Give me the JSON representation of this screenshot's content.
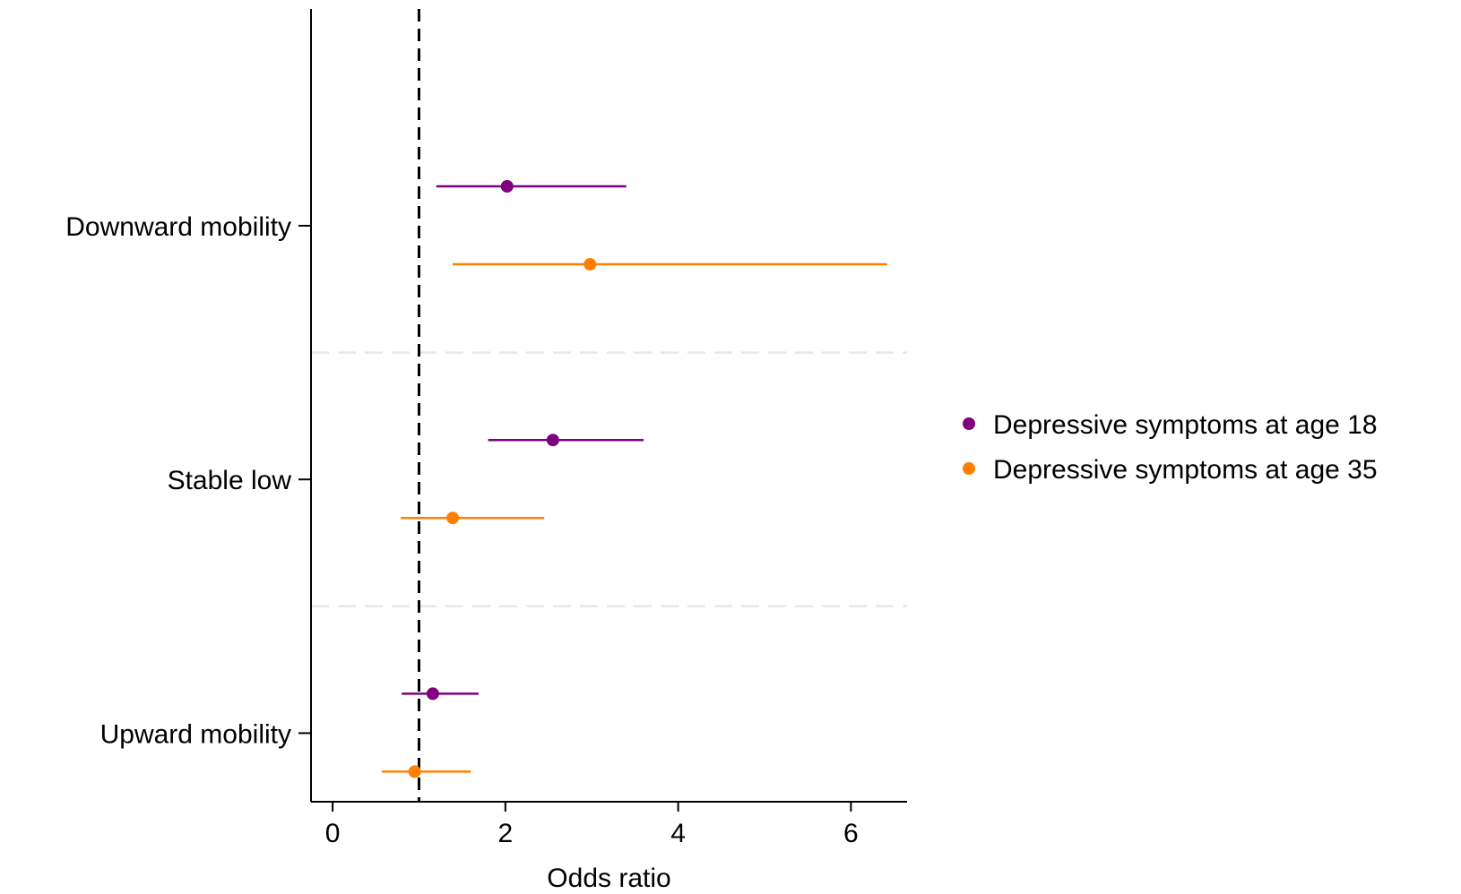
{
  "chart_data": {
    "type": "scatter",
    "subtype": "forest-plot",
    "title": "",
    "xlabel": "Odds ratio",
    "ylabel": "",
    "xlim": [
      -0.25,
      6.65
    ],
    "xticks": [
      0,
      2,
      4,
      6
    ],
    "reference_line": 1,
    "categories": [
      "Downward mobility",
      "Stable low",
      "Upward mobility"
    ],
    "series": [
      {
        "name": "Depressive symptoms at age 18",
        "color": "#800080",
        "estimates": [
          2.02,
          2.55,
          1.16
        ],
        "ci_lower": [
          1.2,
          1.8,
          0.8
        ],
        "ci_upper": [
          3.4,
          3.6,
          1.69
        ]
      },
      {
        "name": "Depressive symptoms at age 35",
        "color": "#ff8000",
        "estimates": [
          2.98,
          1.39,
          0.95
        ],
        "ci_lower": [
          1.39,
          0.79,
          0.57
        ],
        "ci_upper": [
          6.42,
          2.45,
          1.6
        ]
      }
    ],
    "grid": false,
    "legend_position": "right"
  }
}
